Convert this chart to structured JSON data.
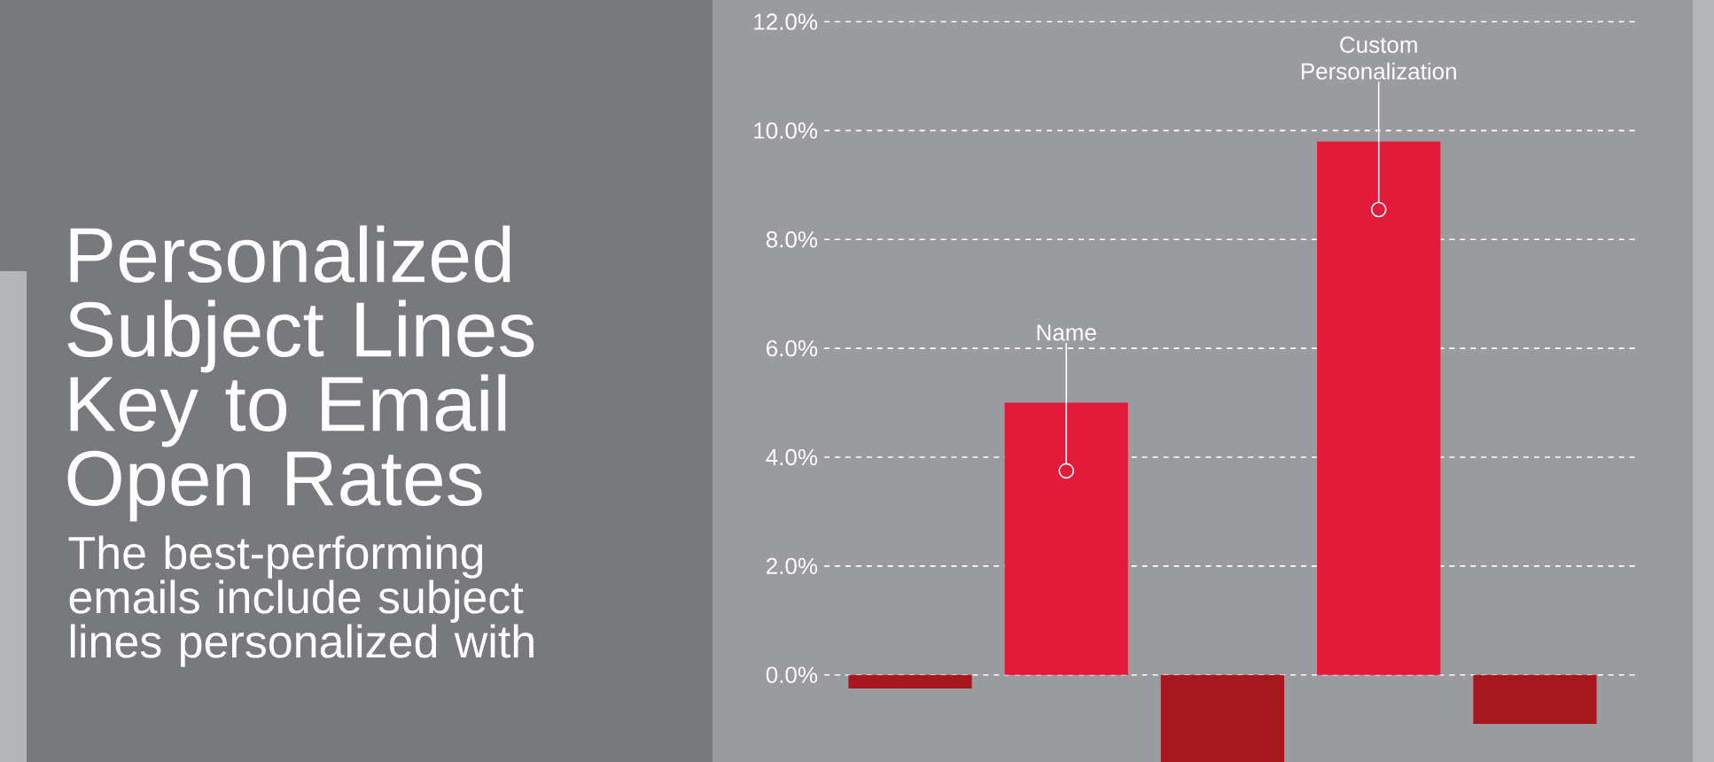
{
  "chart_data": {
    "type": "bar",
    "title": "Personalized Subject Lines Key to Email Open Rates",
    "subtitle": "The best-performing emails include subject lines personalized with",
    "categories": [
      null,
      null,
      null,
      null,
      null
    ],
    "values": [
      -0.25,
      5.0,
      -1.6,
      9.8,
      -0.9
    ],
    "colors": [
      "#a8161e",
      "#e31b3a",
      "#a8161e",
      "#e31b3a",
      "#a8161e"
    ],
    "ylim": [
      -1.6,
      12.4
    ],
    "yticks": [
      {
        "value": 0,
        "label": "0.0%"
      },
      {
        "value": 2,
        "label": "2.0%"
      },
      {
        "value": 4,
        "label": "4.0%"
      },
      {
        "value": 6,
        "label": "6.0%"
      },
      {
        "value": 8,
        "label": "8.0%"
      },
      {
        "value": 10,
        "label": "10.0%"
      },
      {
        "value": 12,
        "label": "12.0%"
      }
    ],
    "grid": "y",
    "annotations": [
      {
        "text": "Name",
        "y": 5.0
      },
      {
        "text": "Custom Personalization",
        "y": 9.8
      }
    ]
  }
}
